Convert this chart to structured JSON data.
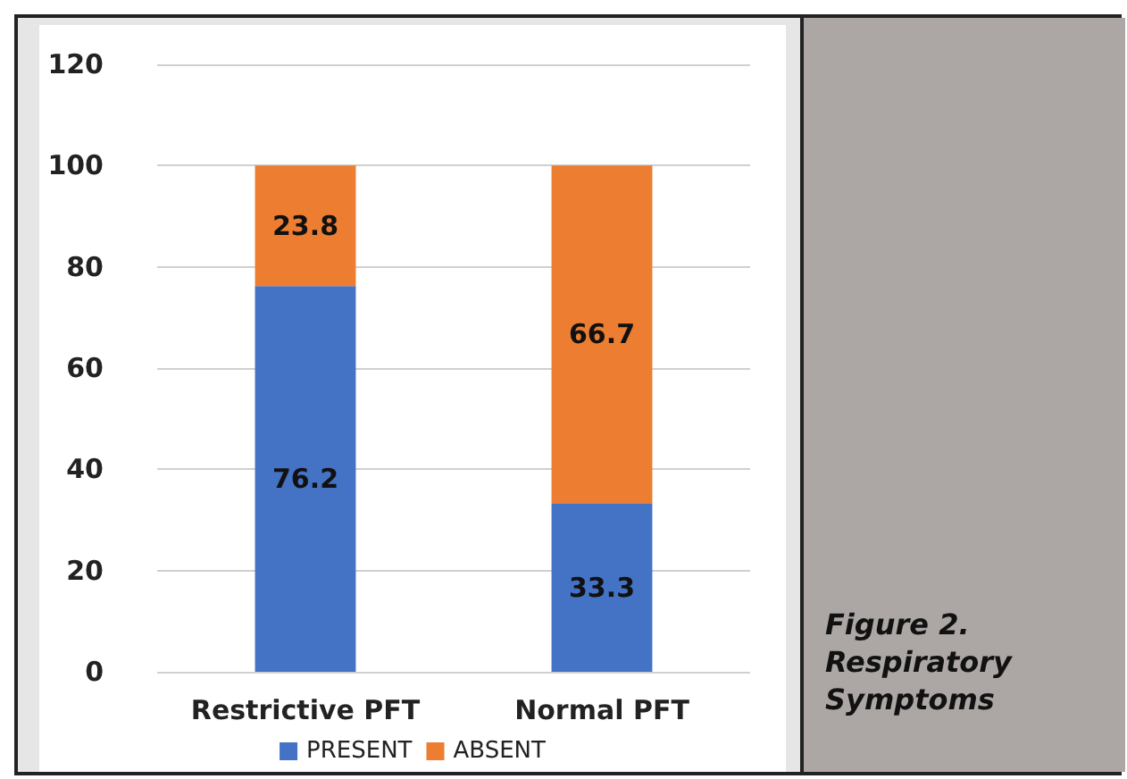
{
  "chart_data": {
    "type": "bar",
    "stacked": true,
    "categories": [
      "Restrictive PFT",
      "Normal PFT"
    ],
    "series": [
      {
        "name": "PRESENT",
        "color": "#4472c4",
        "values": [
          76.2,
          33.3
        ]
      },
      {
        "name": "ABSENT",
        "color": "#ed7d31",
        "values": [
          23.8,
          66.7
        ]
      }
    ],
    "ylim": [
      0,
      120
    ],
    "yticks": [
      0,
      20,
      40,
      60,
      80,
      100,
      120
    ],
    "grid": "y",
    "legend": "bottom",
    "data_labels": true,
    "annotations": [
      "Figure 2. Respiratory Symptoms"
    ]
  }
}
